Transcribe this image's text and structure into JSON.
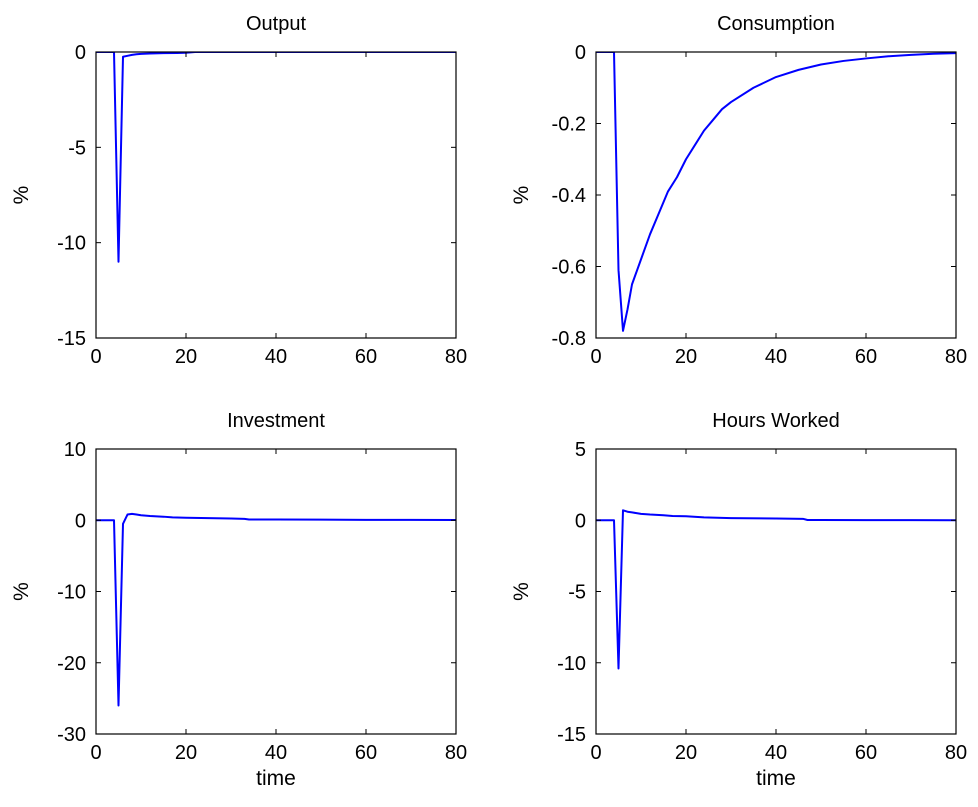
{
  "chart_data": [
    {
      "type": "line",
      "title": "Output",
      "xlabel": "",
      "ylabel": "%",
      "xlim": [
        0,
        80
      ],
      "ylim": [
        -15,
        0
      ],
      "xticks": [
        0,
        20,
        40,
        60,
        80
      ],
      "yticks": [
        -15,
        -10,
        -5,
        0
      ],
      "x": [
        0,
        3,
        4,
        5,
        6,
        7,
        8,
        9,
        10,
        12,
        15,
        18,
        20,
        22,
        25,
        30,
        40,
        50,
        60,
        70,
        80
      ],
      "series": [
        {
          "values": [
            0,
            0,
            0,
            -11,
            -0.25,
            -0.2,
            -0.15,
            -0.12,
            -0.1,
            -0.08,
            -0.06,
            -0.05,
            -0.04,
            0,
            0,
            0,
            0,
            0,
            0,
            0,
            0
          ]
        }
      ],
      "line_color": "#0000ff",
      "grid": false
    },
    {
      "type": "line",
      "title": "Consumption",
      "xlabel": "",
      "ylabel": "%",
      "xlim": [
        0,
        80
      ],
      "ylim": [
        -0.8,
        0
      ],
      "xticks": [
        0,
        20,
        40,
        60,
        80
      ],
      "yticks": [
        -0.8,
        -0.6,
        -0.4,
        -0.2,
        0
      ],
      "x": [
        0,
        3,
        4,
        5,
        6,
        7,
        8,
        10,
        12,
        14,
        16,
        18,
        20,
        22,
        24,
        26,
        28,
        30,
        35,
        40,
        45,
        50,
        55,
        60,
        65,
        70,
        75,
        80
      ],
      "series": [
        {
          "values": [
            0,
            0,
            0,
            -0.61,
            -0.78,
            -0.72,
            -0.65,
            -0.58,
            -0.51,
            -0.45,
            -0.39,
            -0.35,
            -0.3,
            -0.26,
            -0.22,
            -0.19,
            -0.16,
            -0.14,
            -0.1,
            -0.07,
            -0.05,
            -0.035,
            -0.025,
            -0.018,
            -0.012,
            -0.008,
            -0.005,
            -0.003
          ]
        }
      ],
      "line_color": "#0000ff",
      "grid": false
    },
    {
      "type": "line",
      "title": "Investment",
      "xlabel": "time",
      "ylabel": "%",
      "xlim": [
        0,
        80
      ],
      "ylim": [
        -30,
        10
      ],
      "xticks": [
        0,
        20,
        40,
        60,
        80
      ],
      "yticks": [
        -30,
        -20,
        -10,
        0,
        10
      ],
      "x": [
        0,
        3,
        4,
        5,
        6,
        7,
        8,
        9,
        10,
        12,
        15,
        17,
        20,
        25,
        30,
        33,
        34,
        40,
        50,
        60,
        70,
        80
      ],
      "series": [
        {
          "values": [
            0,
            0,
            0,
            -26,
            -0.5,
            0.8,
            0.9,
            0.8,
            0.7,
            0.6,
            0.5,
            0.4,
            0.35,
            0.3,
            0.25,
            0.2,
            0.1,
            0.1,
            0.08,
            0.06,
            0.05,
            0.04
          ]
        }
      ],
      "line_color": "#0000ff",
      "grid": false
    },
    {
      "type": "line",
      "title": "Hours Worked",
      "xlabel": "time",
      "ylabel": "%",
      "xlim": [
        0,
        80
      ],
      "ylim": [
        -15,
        5
      ],
      "xticks": [
        0,
        20,
        40,
        60,
        80
      ],
      "yticks": [
        -15,
        -10,
        -5,
        0,
        5
      ],
      "x": [
        0,
        3,
        4,
        5,
        6,
        7,
        8,
        9,
        10,
        12,
        15,
        17,
        20,
        24,
        30,
        40,
        46,
        47,
        50,
        60,
        70,
        80
      ],
      "series": [
        {
          "values": [
            0,
            0,
            0,
            -10.4,
            0.7,
            0.6,
            0.55,
            0.5,
            0.45,
            0.4,
            0.35,
            0.3,
            0.28,
            0.2,
            0.15,
            0.12,
            0.1,
            0.02,
            0.02,
            0.01,
            0.01,
            0
          ]
        }
      ],
      "line_color": "#0000ff",
      "grid": false
    }
  ]
}
